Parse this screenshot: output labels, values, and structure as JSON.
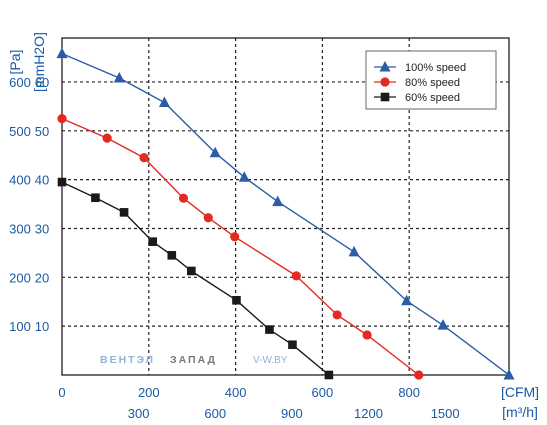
{
  "chart_data": {
    "type": "line",
    "units": {
      "pa": "[Pa]",
      "mmh2o": "[mmH2O]",
      "cfm": "[CFM]",
      "m3h": "[m³/h]"
    },
    "pa_ticks": [
      100,
      200,
      300,
      400,
      500,
      600
    ],
    "mmh2o_ticks": [
      10,
      20,
      30,
      40,
      50,
      60
    ],
    "cfm_ticks": [
      0,
      200,
      400,
      600,
      800
    ],
    "m3h_ticks": [
      300,
      600,
      900,
      1200,
      1500
    ],
    "xlim_cfm": [
      0,
      1030
    ],
    "ylim_pa": [
      0,
      690
    ],
    "grid": true,
    "legend_position": "top-right",
    "series": [
      {
        "name": "100%  speed",
        "color": "#2a5ca8",
        "marker": "triangle",
        "x": [
          0,
          132,
          236,
          353,
          420,
          497,
          673,
          794,
          878,
          1030
        ],
        "y": [
          658,
          608,
          558,
          455,
          405,
          355,
          252,
          152,
          102,
          0
        ]
      },
      {
        "name": "80%  speed",
        "color": "#e32a22",
        "marker": "circle",
        "x": [
          0,
          104,
          189,
          280,
          337,
          398,
          540,
          634,
          703,
          822
        ],
        "y": [
          525,
          485,
          445,
          362,
          322,
          283,
          203,
          123,
          82,
          0
        ]
      },
      {
        "name": "60%  speed",
        "color": "#1a1a1a",
        "marker": "square",
        "x": [
          0,
          77,
          143,
          209,
          253,
          298,
          402,
          478,
          531,
          615
        ],
        "y": [
          395,
          363,
          333,
          273,
          245,
          213,
          153,
          93,
          62,
          0
        ]
      }
    ]
  },
  "watermark": {
    "brand_a": "ВЕНТЭЛ",
    "brand_b": "ЗАПАД",
    "site": "V-W.BY",
    "color_a": "#8fb3d8",
    "color_b": "#7a7a7a"
  }
}
